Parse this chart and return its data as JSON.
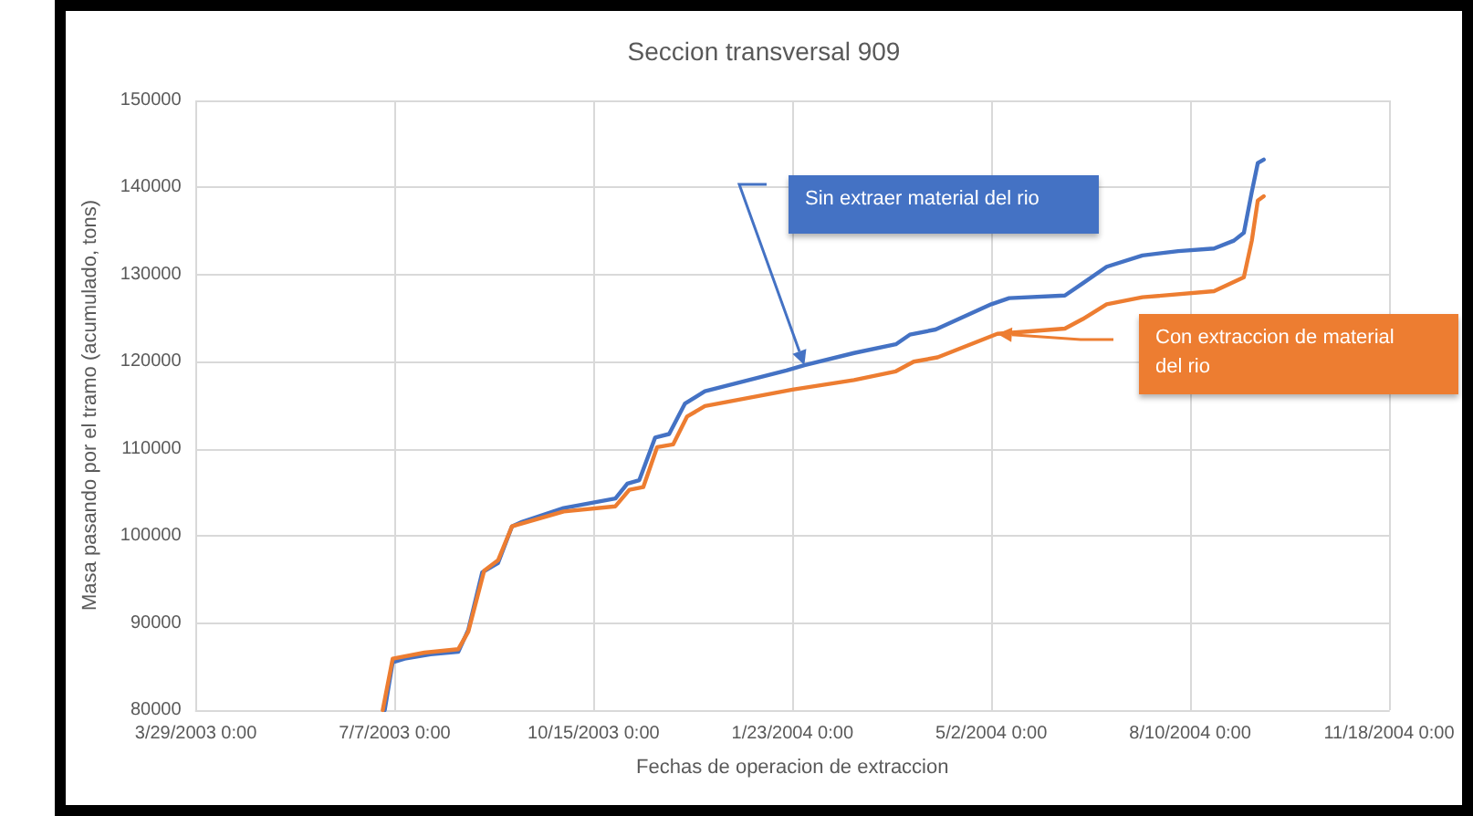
{
  "chart_data": {
    "type": "line",
    "title": "Seccion transversal 909",
    "xlabel": "Fechas de operacion de extraccion",
    "ylabel": "Masa pasando por el tramo (acumulado, tons)",
    "xlim": [
      "2003-03-29",
      "2004-11-18"
    ],
    "xticks": [
      {
        "value": "2003-03-29",
        "label": "3/29/2003 0:00"
      },
      {
        "value": "2003-07-07",
        "label": "7/7/2003 0:00"
      },
      {
        "value": "2003-10-15",
        "label": "10/15/2003 0:00"
      },
      {
        "value": "2004-01-23",
        "label": "1/23/2004 0:00"
      },
      {
        "value": "2004-05-02",
        "label": "5/2/2004 0:00"
      },
      {
        "value": "2004-08-10",
        "label": "8/10/2004 0:00"
      },
      {
        "value": "2004-11-18",
        "label": "11/18/2004 0:00"
      }
    ],
    "ylim": [
      80000,
      150000
    ],
    "yticks": [
      80000,
      90000,
      100000,
      110000,
      120000,
      130000,
      140000,
      150000
    ],
    "grid": true,
    "legend": false,
    "marker": "none",
    "line_style": "solid",
    "series": [
      {
        "name": "Sin extraer material del rio",
        "color": "#4472c4",
        "x": [
          "2003-07-02",
          "2003-07-06",
          "2003-07-12",
          "2003-07-25",
          "2003-08-08",
          "2003-08-13",
          "2003-08-20",
          "2003-08-25",
          "2003-08-28",
          "2003-09-04",
          "2003-09-09",
          "2003-09-30",
          "2003-10-26",
          "2003-11-01",
          "2003-11-07",
          "2003-11-15",
          "2003-11-22",
          "2003-11-30",
          "2003-12-10",
          "2004-01-20",
          "2004-01-29",
          "2004-02-23",
          "2004-03-15",
          "2004-03-22",
          "2004-04-04",
          "2004-05-02",
          "2004-05-11",
          "2004-06-08",
          "2004-06-17",
          "2004-06-29",
          "2004-07-17",
          "2004-08-04",
          "2004-08-22",
          "2004-09-01",
          "2004-09-06",
          "2004-09-10",
          "2004-09-13",
          "2004-09-16"
        ],
        "values": [
          80000,
          85500,
          85900,
          86400,
          86700,
          89200,
          95800,
          96500,
          96900,
          101100,
          101600,
          103200,
          104300,
          106000,
          106400,
          111300,
          111700,
          115200,
          116600,
          119000,
          119600,
          121000,
          122000,
          123100,
          123700,
          126600,
          127300,
          127600,
          129000,
          130900,
          132200,
          132700,
          133000,
          133900,
          134800,
          139500,
          142800,
          143200
        ]
      },
      {
        "name": "Con extraccion de material del rio",
        "color": "#ed7d31",
        "x": [
          "2003-07-01",
          "2003-07-06",
          "2003-07-22",
          "2003-08-08",
          "2003-08-13",
          "2003-08-21",
          "2003-08-28",
          "2003-09-04",
          "2003-09-30",
          "2003-10-26",
          "2003-11-02",
          "2003-11-09",
          "2003-11-16",
          "2003-11-24",
          "2003-12-01",
          "2003-12-10",
          "2004-01-23",
          "2004-02-23",
          "2004-03-15",
          "2004-03-24",
          "2004-04-05",
          "2004-05-05",
          "2004-06-08",
          "2004-06-17",
          "2004-06-29",
          "2004-07-17",
          "2004-08-22",
          "2004-09-06",
          "2004-09-10",
          "2004-09-13",
          "2004-09-16"
        ],
        "values": [
          80000,
          85900,
          86600,
          87000,
          89000,
          96000,
          97200,
          101100,
          102800,
          103400,
          105300,
          105600,
          110200,
          110500,
          113700,
          114900,
          116800,
          117900,
          118900,
          120000,
          120500,
          123200,
          123800,
          124900,
          126600,
          127400,
          128100,
          129700,
          133900,
          138500,
          139000
        ]
      }
    ]
  }
}
